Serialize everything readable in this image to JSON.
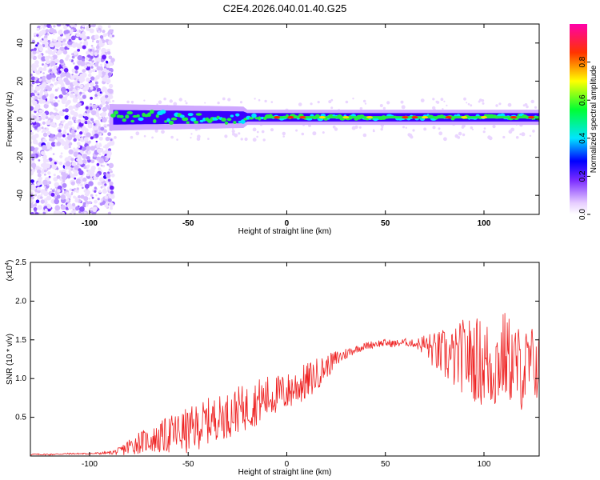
{
  "title": "C2E4.2026.040.01.40.G25",
  "chart_data": [
    {
      "type": "heatmap",
      "xlabel": "Height of straight line (km)",
      "ylabel": "Frequency (Hz)",
      "xlim": [
        -130,
        128
      ],
      "ylim": [
        -50,
        50
      ],
      "xticks": [
        -100,
        -50,
        0,
        50,
        100
      ],
      "xtick_labels": [
        "-100",
        "-50",
        "0",
        "50",
        "100"
      ],
      "yticks": [
        -40,
        -20,
        0,
        20,
        40
      ],
      "ytick_labels": [
        "-40",
        "-20",
        "0",
        "20",
        "40"
      ],
      "colorbar": {
        "label": "Normalized spectral amplitude",
        "range": [
          0,
          1
        ],
        "ticks": [
          0.0,
          0.2,
          0.4,
          0.6,
          0.8
        ],
        "tick_labels": [
          "0.0",
          "0.2",
          "0.4",
          "0.6",
          "0.8"
        ]
      },
      "description_regions": [
        {
          "x_range": [
            -130,
            -90
          ],
          "freq_range": [
            -50,
            50
          ],
          "amplitude_range": [
            0.0,
            0.2
          ],
          "pattern": "scattered noise"
        },
        {
          "x_range": [
            -90,
            128
          ],
          "center_freq": 1,
          "width_hz": 6,
          "amplitude_range": [
            0.2,
            1.0
          ],
          "pattern": "narrow band near 0-2 Hz"
        }
      ]
    },
    {
      "type": "line",
      "xlabel": "Height of straight line (km)",
      "ylabel": "SNR (10 * v/v)",
      "y_multiplier_label": "(x10",
      "y_multiplier_exp": "4",
      "y_multiplier_close": ")",
      "xlim": [
        -130,
        128
      ],
      "ylim": [
        0,
        2.5
      ],
      "xticks": [
        -100,
        -50,
        0,
        50,
        100
      ],
      "xtick_labels": [
        "-100",
        "-50",
        "0",
        "50",
        "100"
      ],
      "yticks": [
        0.5,
        1.0,
        1.5,
        2.0,
        2.5
      ],
      "ytick_labels": [
        "0.5",
        "1.0",
        "1.5",
        "2.0",
        "2.5"
      ],
      "series": [
        {
          "name": "SNR",
          "color": "#ee2222",
          "x": [
            -130,
            -120,
            -110,
            -100,
            -90,
            -85,
            -80,
            -75,
            -70,
            -65,
            -60,
            -55,
            -50,
            -45,
            -40,
            -35,
            -30,
            -25,
            -20,
            -15,
            -10,
            -5,
            0,
            5,
            10,
            15,
            20,
            25,
            30,
            35,
            40,
            45,
            50,
            55,
            60,
            65,
            70,
            75,
            80,
            85,
            90,
            95,
            100,
            105,
            110,
            115,
            120,
            125,
            128
          ],
          "y": [
            0.02,
            0.02,
            0.03,
            0.03,
            0.04,
            0.06,
            0.12,
            0.18,
            0.2,
            0.22,
            0.28,
            0.3,
            0.32,
            0.38,
            0.45,
            0.5,
            0.52,
            0.6,
            0.62,
            0.7,
            0.75,
            0.8,
            0.82,
            0.9,
            0.95,
            1.05,
            1.15,
            1.25,
            1.32,
            1.38,
            1.42,
            1.45,
            1.46,
            1.45,
            1.47,
            1.45,
            1.44,
            1.35,
            1.3,
            1.25,
            1.3,
            1.25,
            1.2,
            1.15,
            1.3,
            1.2,
            1.1,
            1.2,
            1.15
          ],
          "noise_amplitude": [
            0.01,
            0.01,
            0.01,
            0.01,
            0.02,
            0.05,
            0.12,
            0.15,
            0.15,
            0.2,
            0.25,
            0.28,
            0.3,
            0.3,
            0.3,
            0.28,
            0.3,
            0.3,
            0.3,
            0.3,
            0.3,
            0.25,
            0.25,
            0.25,
            0.25,
            0.22,
            0.15,
            0.12,
            0.08,
            0.05,
            0.05,
            0.05,
            0.05,
            0.05,
            0.05,
            0.05,
            0.15,
            0.25,
            0.35,
            0.4,
            0.5,
            0.55,
            0.6,
            0.6,
            0.6,
            0.55,
            0.55,
            0.5,
            0.45
          ]
        }
      ]
    }
  ]
}
